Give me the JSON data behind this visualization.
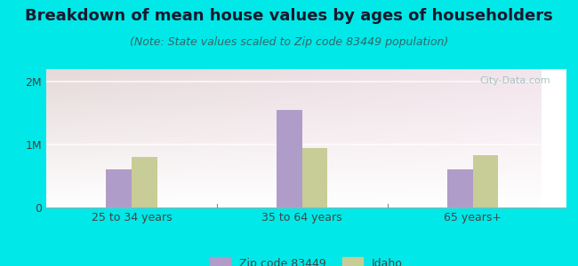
{
  "title": "Breakdown of mean house values by ages of householders",
  "subtitle": "(Note: State values scaled to Zip code 83449 population)",
  "categories": [
    "25 to 34 years",
    "35 to 64 years",
    "65 years+"
  ],
  "zip_values": [
    600000,
    1550000,
    600000
  ],
  "state_values": [
    800000,
    950000,
    830000
  ],
  "zip_color": "#b09cc8",
  "state_color": "#c8cc96",
  "background_outer": "#00e8e8",
  "ylim": [
    0,
    2200000
  ],
  "yticks": [
    0,
    1000000,
    2000000
  ],
  "ytick_labels": [
    "0",
    "1M",
    "2M"
  ],
  "legend_zip_label": "Zip code 83449",
  "legend_state_label": "Idaho",
  "title_fontsize": 13,
  "subtitle_fontsize": 9,
  "bar_width": 0.3
}
